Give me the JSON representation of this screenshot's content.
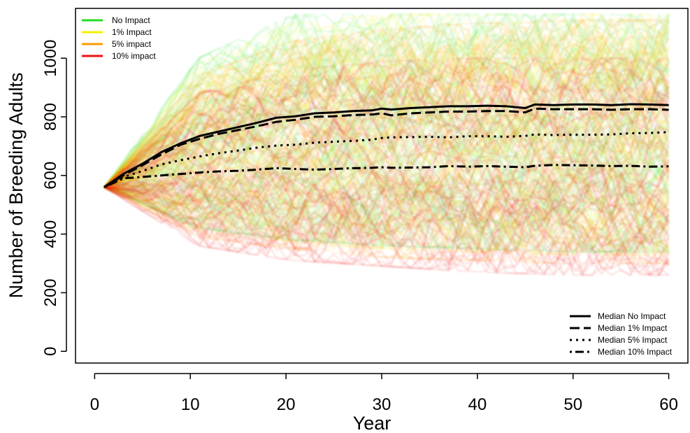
{
  "chart_data": {
    "type": "line",
    "xlabel": "Year",
    "ylabel": "Number of Breeding Adults",
    "xlim": [
      -2,
      62
    ],
    "ylim": [
      -40,
      1170
    ],
    "xticks": [
      0,
      10,
      20,
      30,
      40,
      50,
      60
    ],
    "yticks": [
      0,
      200,
      400,
      600,
      800,
      1000
    ],
    "grid": false,
    "start_value": 560,
    "simulations": {
      "description_legend": "top-left",
      "series": [
        {
          "name": "No Impact",
          "color": "#22dd22",
          "band_low": [
            560,
            420,
            380,
            360,
            350,
            340,
            340
          ],
          "band_high": [
            560,
            1000,
            1150,
            1150,
            1150,
            1150,
            1150
          ]
        },
        {
          "name": "1% Impact",
          "color": "#f2f200",
          "band_low": [
            560,
            410,
            370,
            350,
            340,
            330,
            330
          ],
          "band_high": [
            560,
            980,
            1120,
            1150,
            1150,
            1150,
            1150
          ]
        },
        {
          "name": "5% impact",
          "color": "#ff9900",
          "band_low": [
            560,
            390,
            350,
            320,
            310,
            300,
            300
          ],
          "band_high": [
            560,
            940,
            1060,
            1100,
            1120,
            1130,
            1130
          ]
        },
        {
          "name": "10% impact",
          "color": "#ee1111",
          "band_low": [
            560,
            360,
            310,
            290,
            270,
            260,
            260
          ],
          "band_high": [
            560,
            880,
            960,
            990,
            1000,
            1000,
            1000
          ]
        }
      ]
    },
    "medians": {
      "legend_position": "bottom-right",
      "x": [
        1,
        3,
        5,
        7,
        9,
        11,
        13,
        15,
        17,
        19,
        21,
        23,
        25,
        27,
        29,
        30,
        31,
        33,
        35,
        37,
        39,
        41,
        43,
        45,
        46,
        48,
        50,
        52,
        54,
        56,
        58,
        60
      ],
      "series": [
        {
          "name": "Median No Impact",
          "dash": "solid",
          "values": [
            560,
            605,
            640,
            680,
            710,
            735,
            750,
            765,
            780,
            797,
            802,
            812,
            815,
            820,
            822,
            828,
            825,
            830,
            833,
            836,
            836,
            838,
            836,
            830,
            842,
            840,
            842,
            842,
            840,
            843,
            842,
            840
          ]
        },
        {
          "name": "Median 1% Impact",
          "dash": "long-dash",
          "values": [
            560,
            600,
            635,
            672,
            705,
            725,
            742,
            755,
            768,
            783,
            790,
            800,
            802,
            806,
            808,
            812,
            805,
            812,
            815,
            818,
            818,
            820,
            820,
            815,
            828,
            826,
            826,
            826,
            824,
            826,
            826,
            824
          ]
        },
        {
          "name": "Median 5% Impact",
          "dash": "dotted",
          "values": [
            560,
            595,
            615,
            638,
            652,
            665,
            676,
            685,
            695,
            702,
            705,
            712,
            715,
            718,
            722,
            728,
            730,
            731,
            732,
            730,
            734,
            734,
            732,
            735,
            740,
            738,
            739,
            739,
            740,
            744,
            745,
            748
          ]
        },
        {
          "name": "Median 10% Impact",
          "dash": "dot-dash",
          "values": [
            560,
            590,
            595,
            600,
            605,
            610,
            614,
            616,
            620,
            625,
            622,
            620,
            622,
            625,
            626,
            628,
            626,
            627,
            628,
            632,
            630,
            632,
            630,
            628,
            633,
            636,
            635,
            634,
            632,
            633,
            630,
            631
          ]
        }
      ]
    }
  }
}
